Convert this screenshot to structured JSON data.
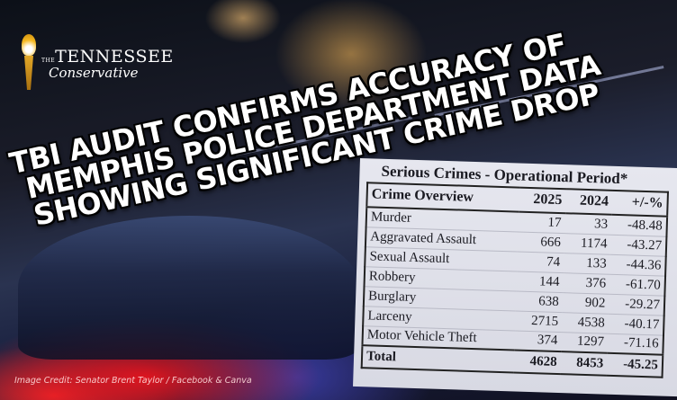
{
  "logo": {
    "prefix": "THE",
    "name": "TENNESSEE",
    "sub": "Conservative"
  },
  "headline": [
    "TBI AUDIT CONFIRMS ACCURACY OF",
    "MEMPHIS POLICE DEPARTMENT DATA",
    "SHOWING SIGNIFICANT CRIME DROP"
  ],
  "table": {
    "title": "Serious Crimes - Operational Period*",
    "headers": [
      "Crime Overview",
      "2025",
      "2024",
      "+/-%"
    ],
    "rows": [
      [
        "Murder",
        "17",
        "33",
        "-48.48"
      ],
      [
        "Aggravated Assault",
        "666",
        "1174",
        "-43.27"
      ],
      [
        "Sexual Assault",
        "74",
        "133",
        "-44.36"
      ],
      [
        "Robbery",
        "144",
        "376",
        "-61.70"
      ],
      [
        "Burglary",
        "638",
        "902",
        "-29.27"
      ],
      [
        "Larceny",
        "2715",
        "4538",
        "-40.17"
      ],
      [
        "Motor Vehicle Theft",
        "374",
        "1297",
        "-71.16"
      ]
    ],
    "total": [
      "Total",
      "4628",
      "8453",
      "-45.25"
    ]
  },
  "credit": "Image Credit: Senator Brent Taylor / Facebook & Canva"
}
